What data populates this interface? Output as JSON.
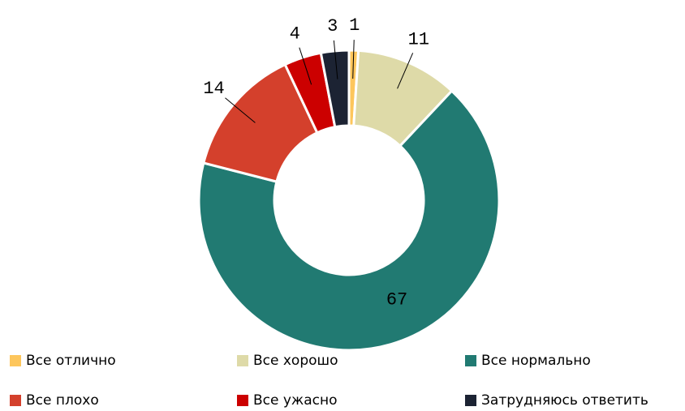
{
  "chart_data": {
    "type": "donut",
    "categories": [
      "Все отлично",
      "Все хорошо",
      "Все нормально",
      "Все плохо",
      "Все ужасно",
      "Затрудняюсь ответить"
    ],
    "values": [
      1,
      11,
      67,
      14,
      4,
      3
    ],
    "colors": [
      "#fdc65c",
      "#dedaa8",
      "#217a72",
      "#d4402c",
      "#cc0000",
      "#1c2333"
    ],
    "legend": "bottom"
  }
}
